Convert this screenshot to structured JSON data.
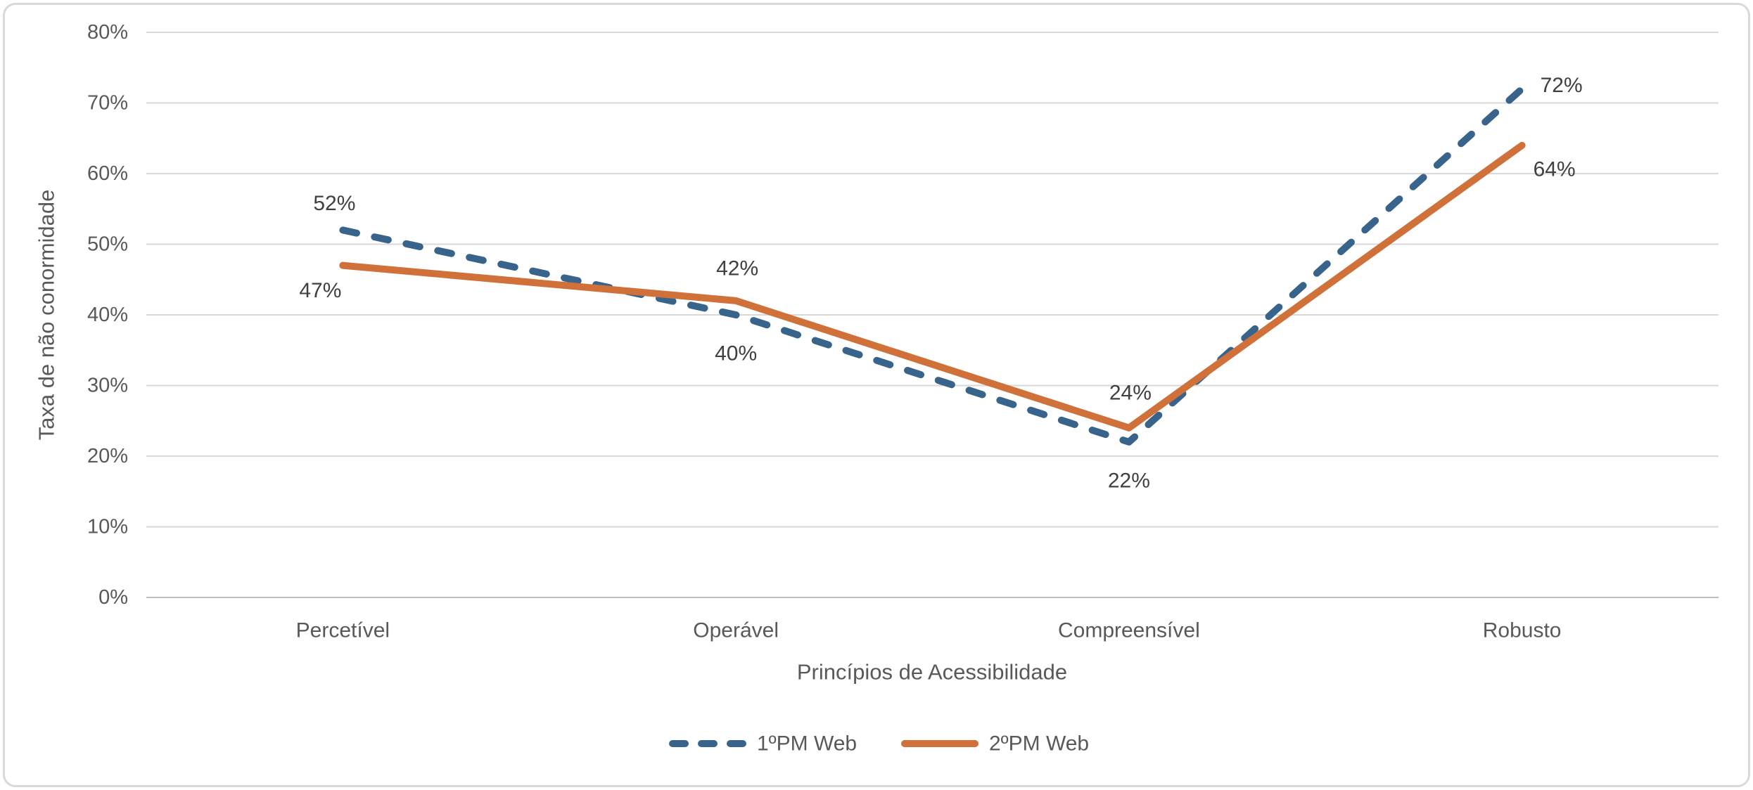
{
  "chart_data": {
    "type": "line",
    "title": "",
    "categories": [
      "Percetível",
      "Operável",
      "Compreensível",
      "Robusto"
    ],
    "series": [
      {
        "name": "1ºPM Web",
        "values": [
          52,
          40,
          22,
          72
        ],
        "labels": [
          "52%",
          "40%",
          "22%",
          "72%"
        ],
        "color": "#38648C",
        "style": "dashed"
      },
      {
        "name": "2ºPM Web",
        "values": [
          47,
          42,
          24,
          64
        ],
        "labels": [
          "47%",
          "42%",
          "24%",
          "64%"
        ],
        "color": "#D0713A",
        "style": "solid"
      }
    ],
    "xlabel": "Princípios de Acessibilidade",
    "ylabel": "Taxa de não conormidade",
    "ylim": [
      0,
      80
    ],
    "ytick_step": 10,
    "ytick_labels": [
      "0%",
      "10%",
      "20%",
      "30%",
      "40%",
      "50%",
      "60%",
      "70%",
      "80%"
    ],
    "grid": true,
    "legend_position": "bottom-center",
    "colors": {
      "grid": "#D9D9D9",
      "axis_line": "#BFBFBF",
      "tick_text": "#595959",
      "axis_title_text": "#595959",
      "data_label_text": "#404040",
      "legend_text": "#595959",
      "frame_border": "#D9D9D9",
      "background": "#FFFFFF"
    }
  }
}
